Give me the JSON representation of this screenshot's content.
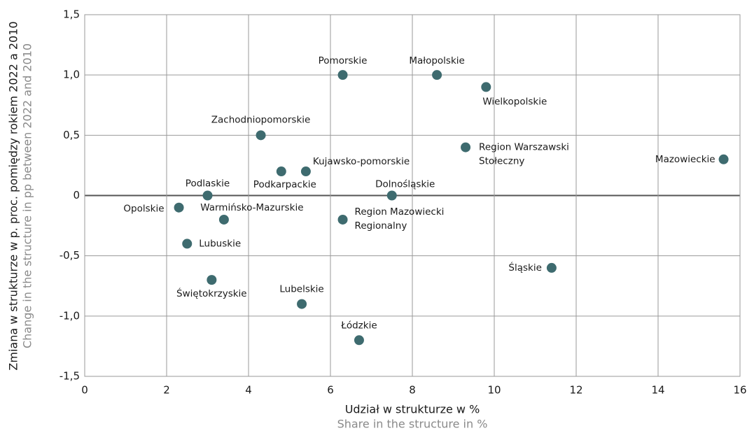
{
  "chart_data": {
    "type": "scatter",
    "x_label": [
      "Udział w strukturze w %",
      "Share in the structure in %"
    ],
    "y_label": [
      "Zmiana w strukturze w p. proc. pomiędzy rokiem 2022 a 2010",
      "Change in the structure in pp between 2022 and 2010"
    ],
    "color": "#3e6b6f",
    "grid": true,
    "xlim": [
      0,
      16
    ],
    "ylim": [
      -1.5,
      1.5
    ],
    "xticks": [
      0,
      2,
      4,
      6,
      8,
      10,
      12,
      14,
      16
    ],
    "yticks": [
      {
        "value": -1.5,
        "label": "-1,5"
      },
      {
        "value": -1.0,
        "label": "-1,0"
      },
      {
        "value": -0.5,
        "label": "-0,5"
      },
      0,
      {
        "value": 0.5,
        "label": "0,5"
      },
      {
        "value": 1.0,
        "label": "1,0"
      },
      {
        "value": 1.5,
        "label": "1,5"
      }
    ],
    "labels": [
      [
        "Pomorskie"
      ],
      [
        "Małopolskie"
      ],
      [
        "Wielkopolskie"
      ],
      [
        "Zachodniopomorskie"
      ],
      [
        "Region Warszawski",
        "Stołeczny"
      ],
      [
        "Mazowieckie"
      ],
      [
        "Podkarpackie"
      ],
      [
        "Kujawsko-pomorskie"
      ],
      [
        "Podlaskie"
      ],
      [
        "Dolnośląskie"
      ],
      [
        "Opolskie"
      ],
      [
        "Warmińsko-Mazurskie"
      ],
      [
        "Region Mazowiecki",
        "Regionalny"
      ],
      [
        "Lubuskie"
      ],
      [
        "Śląskie"
      ],
      [
        "Świętokrzyskie"
      ],
      [
        "Lubelskie"
      ],
      [
        "Łódzkie"
      ]
    ],
    "x": [
      6.3,
      8.6,
      9.8,
      4.3,
      9.3,
      15.6,
      4.8,
      5.4,
      3.0,
      7.5,
      2.3,
      3.4,
      6.3,
      2.5,
      11.4,
      3.1,
      5.3,
      6.7
    ],
    "values": [
      1.0,
      1.0,
      0.9,
      0.5,
      0.4,
      0.3,
      0.2,
      0.2,
      0,
      0,
      -0.1,
      -0.2,
      -0.2,
      -0.4,
      -0.6,
      -0.7,
      -0.9,
      -1.2
    ]
  }
}
